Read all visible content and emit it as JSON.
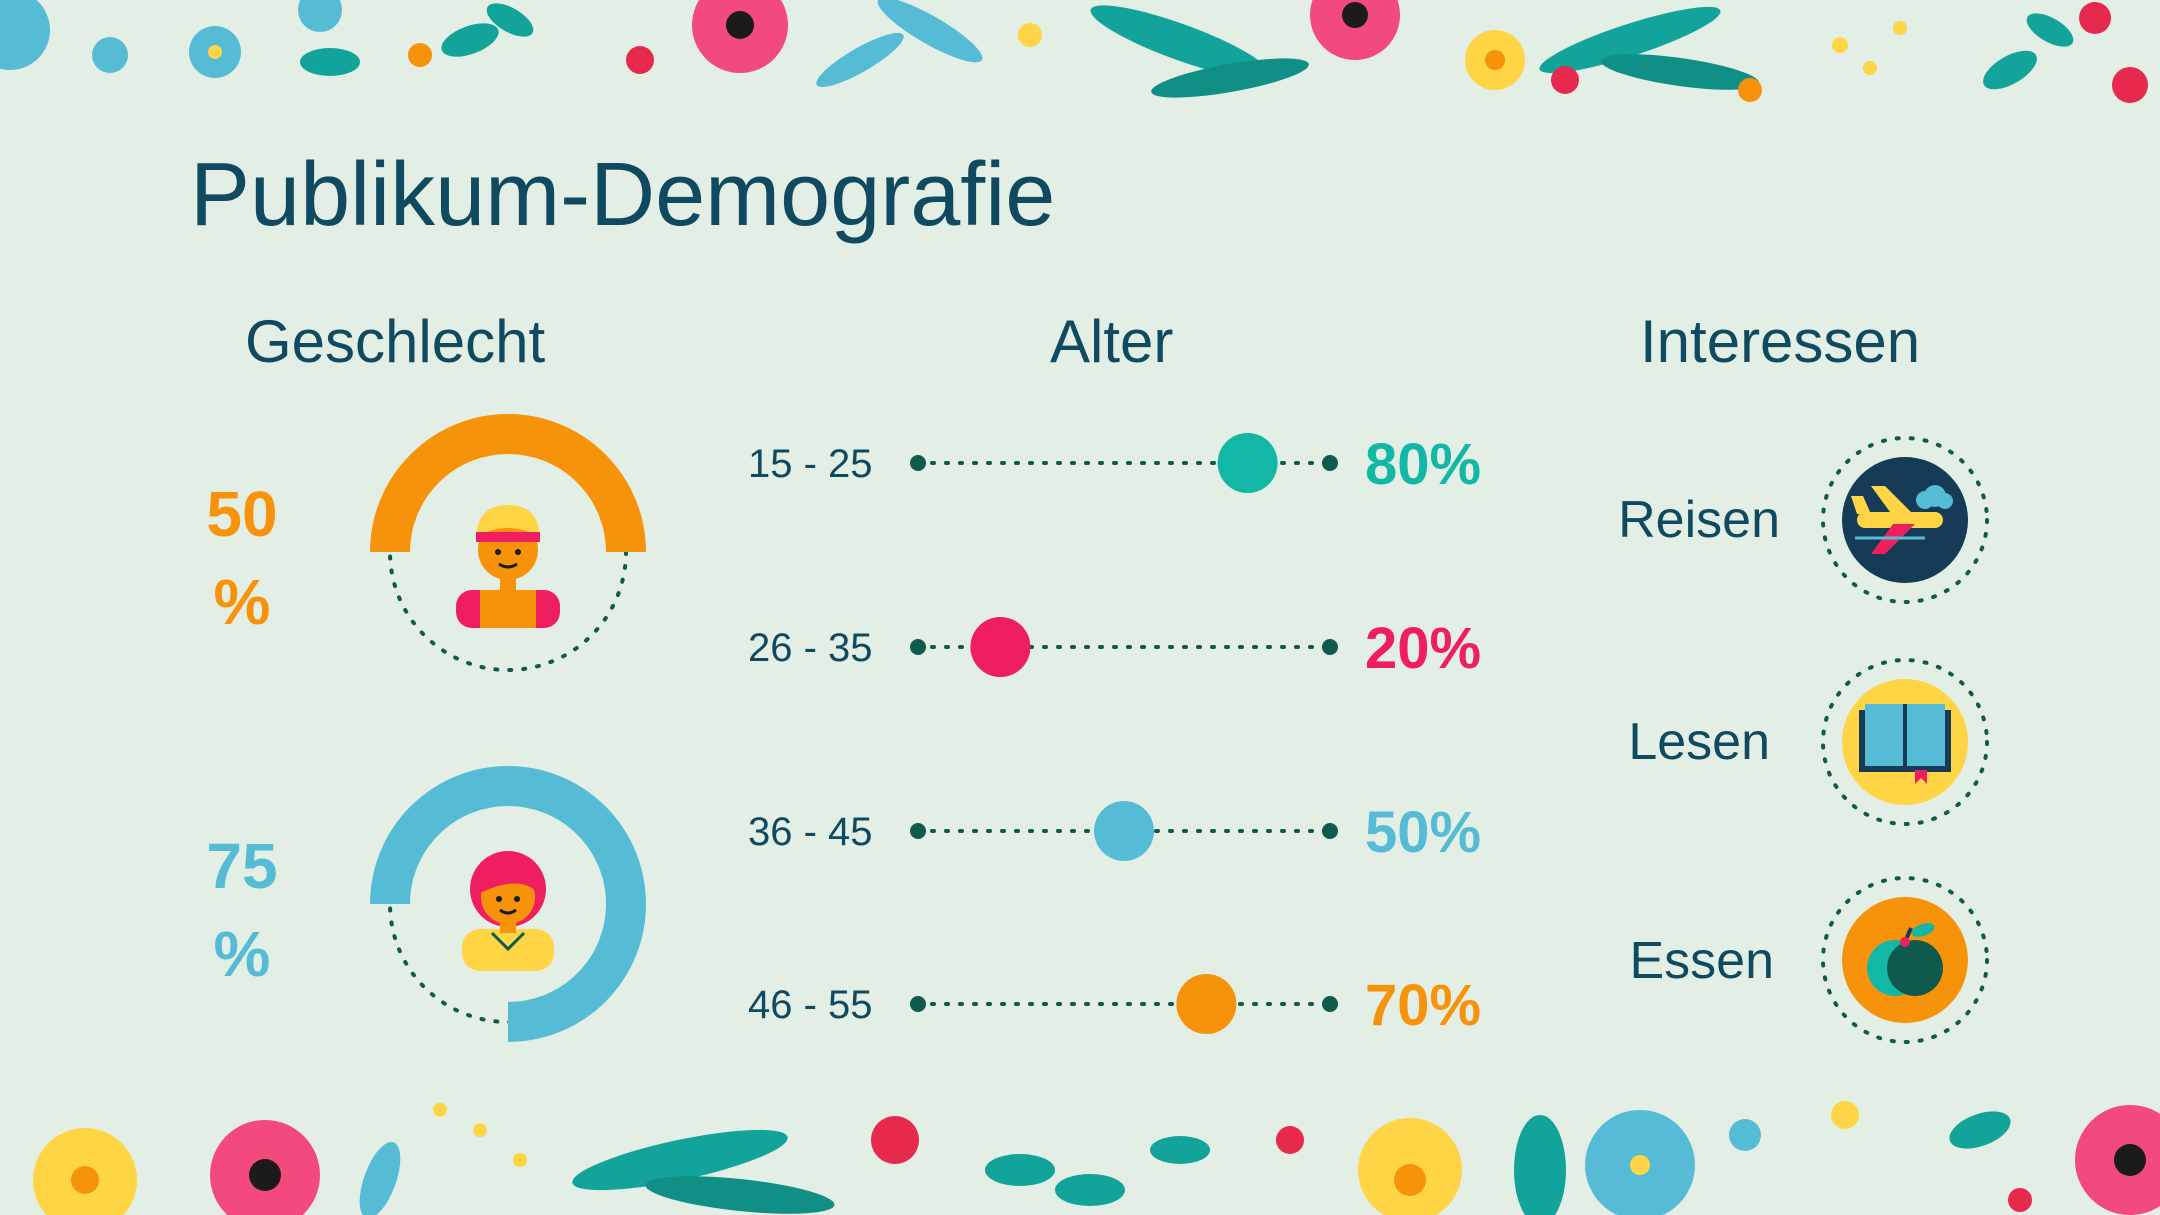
{
  "title": "Publikum-Demografie",
  "colors": {
    "background": "#e3efe5",
    "navy": "#0f4a61",
    "orange": "#f7930a",
    "blue": "#56bcd6",
    "teal": "#12b8a5",
    "pink": "#ef1f5f",
    "yellow": "#ffd445",
    "dark_green": "#0e5a4d"
  },
  "gender": {
    "heading": "Geschlecht",
    "items": [
      {
        "value_line1": "50",
        "value_line2": "%",
        "percent": 50,
        "icon": "man-avatar-icon",
        "color": "#f7930a"
      },
      {
        "value_line1": "75",
        "value_line2": "%",
        "percent": 75,
        "icon": "woman-avatar-icon",
        "color": "#56bcd6"
      }
    ]
  },
  "age": {
    "heading": "Alter",
    "rows": [
      {
        "label": "15 - 25",
        "value": 80,
        "display": "80%",
        "color": "#12b8a5"
      },
      {
        "label": "26 - 35",
        "value": 20,
        "display": "20%",
        "color": "#ef1f5f"
      },
      {
        "label": "36 - 45",
        "value": 50,
        "display": "50%",
        "color": "#56bcd6"
      },
      {
        "label": "46 - 55",
        "value": 70,
        "display": "70%",
        "color": "#f7930a"
      }
    ]
  },
  "interests": {
    "heading": "Interessen",
    "items": [
      {
        "label": "Reisen",
        "icon": "airplane-icon"
      },
      {
        "label": "Lesen",
        "icon": "book-icon"
      },
      {
        "label": "Essen",
        "icon": "apple-icon"
      }
    ]
  },
  "decoration": {
    "top": "floral-border-top",
    "bottom": "floral-border-bottom"
  }
}
